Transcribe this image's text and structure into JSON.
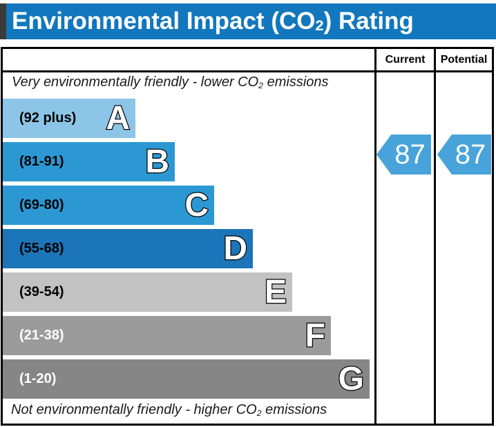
{
  "title": {
    "prefix": "Environmental Impact (CO",
    "sub": "2",
    "suffix": ") Rating"
  },
  "colors": {
    "title_bar": "#1277bd",
    "title_bar_edge": "#3b3b3b",
    "border": "#000000"
  },
  "table": {
    "columns": [
      {
        "label": "Current"
      },
      {
        "label": "Potential"
      }
    ],
    "top_note": {
      "prefix": "Very environmentally friendly - lower CO",
      "sub": "2",
      "suffix": " emissions"
    },
    "bottom_note": {
      "prefix": "Not environmentally friendly - higher CO",
      "sub": "2",
      "suffix": " emissions"
    }
  },
  "chart_data": {
    "type": "bar",
    "title": "Environmental Impact (CO2) Rating",
    "bands": [
      {
        "letter": "A",
        "range": "(92 plus)",
        "color": "#8cc5e7",
        "label_color": "#000000"
      },
      {
        "letter": "B",
        "range": "(81-91)",
        "color": "#2b98d3",
        "label_color": "#000000"
      },
      {
        "letter": "C",
        "range": "(69-80)",
        "color": "#2b98d3",
        "label_color": "#000000"
      },
      {
        "letter": "D",
        "range": "(55-68)",
        "color": "#1b75b8",
        "label_color": "#000000"
      },
      {
        "letter": "E",
        "range": "(39-54)",
        "color": "#c2c2c2",
        "label_color": "#000000"
      },
      {
        "letter": "F",
        "range": "(21-38)",
        "color": "#9b9b9b",
        "label_color": "#ffffff"
      },
      {
        "letter": "G",
        "range": "(1-20)",
        "color": "#868686",
        "label_color": "#ffffff"
      }
    ],
    "ratings": {
      "current": {
        "value": "87",
        "band": "B",
        "color": "#47a3d9"
      },
      "potential": {
        "value": "87",
        "band": "B",
        "color": "#47a3d9"
      }
    }
  }
}
